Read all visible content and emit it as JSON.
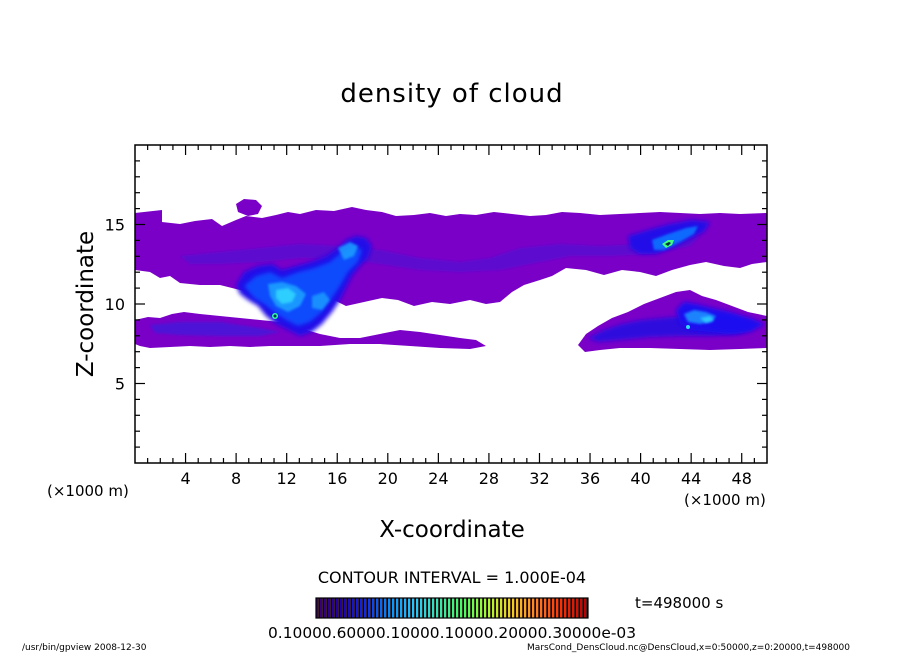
{
  "chart_data": {
    "type": "heatmap",
    "title": "density of cloud",
    "xlabel": "X-coordinate",
    "ylabel": "Z-coordinate",
    "x_unit": "(×1000 m)",
    "y_unit": "(×1000 m)",
    "xlim": [
      0,
      50
    ],
    "ylim": [
      0,
      20
    ],
    "x_ticks": [
      4,
      8,
      12,
      16,
      20,
      24,
      28,
      32,
      36,
      40,
      44,
      48
    ],
    "y_ticks": [
      5,
      10,
      15
    ],
    "contour_interval": "CONTOUR INTERVAL = 1.000E-04",
    "time_label": "t=498000 s",
    "colorbar_labels_text": "0.10000.60000.10000.10000.20000.30000e-03",
    "colormap": [
      "#3a0070",
      "#1a00b0",
      "#0a2af0",
      "#0090ff",
      "#20c8ff",
      "#30e8b0",
      "#40ff60",
      "#a0ff30",
      "#f0d020",
      "#ff8020",
      "#ff3000",
      "#c00000"
    ],
    "background_level_color": "#7a00c8",
    "regions": [
      {
        "name": "upper cloud layer",
        "x": [
          0,
          50
        ],
        "z": [
          11.3,
          16.0
        ],
        "level": 1
      },
      {
        "name": "lower-left band",
        "x": [
          0,
          27
        ],
        "z": [
          7.4,
          9.6
        ],
        "level": 1
      },
      {
        "name": "lower-right band",
        "x": [
          35.5,
          50
        ],
        "z": [
          7.4,
          10.5
        ],
        "level": 1
      },
      {
        "name": "central convective core",
        "x": [
          7.5,
          19
        ],
        "z": [
          8.0,
          14.4
        ],
        "level": 4,
        "max_level": 7
      },
      {
        "name": "upper-right cell",
        "x": [
          40,
          46
        ],
        "z": [
          13.0,
          15.5
        ],
        "level": 4,
        "max_level": 7
      },
      {
        "name": "lower-right cell",
        "x": [
          36,
          50
        ],
        "z": [
          7.6,
          10.0
        ],
        "level": 3,
        "max_level": 5
      }
    ]
  },
  "footer": {
    "left": "/usr/bin/gpview  2008-12-30",
    "right": "MarsCond_DensCloud.nc@DensCloud,x=0:50000,z=0:20000,t=498000"
  }
}
